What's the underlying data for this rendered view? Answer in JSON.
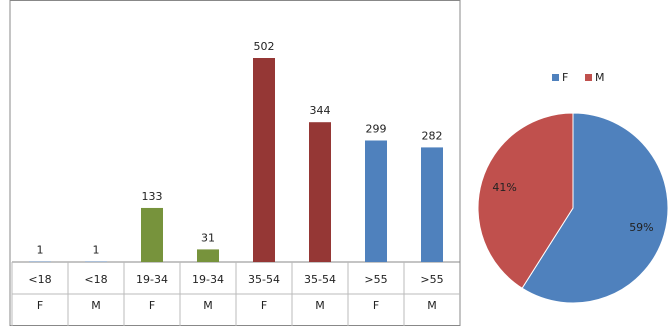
{
  "chart_data": [
    {
      "type": "bar",
      "categories": [
        "<18",
        "<18",
        "19-34",
        "19-34",
        "35-54",
        "35-54",
        ">55",
        ">55"
      ],
      "sub_categories": [
        "F",
        "M",
        "F",
        "M",
        "F",
        "M",
        "F",
        "M"
      ],
      "values": [
        1,
        1,
        133,
        31,
        502,
        344,
        299,
        282
      ],
      "colors": [
        "#4f81bd",
        "#4f81bd",
        "#77933c",
        "#77933c",
        "#953735",
        "#953735",
        "#4f81bd",
        "#4f81bd"
      ]
    },
    {
      "type": "pie",
      "categories": [
        "F",
        "M"
      ],
      "values": [
        59,
        41
      ],
      "value_labels": [
        "59%",
        "41%"
      ],
      "colors": [
        "#4f81bd",
        "#c0504d"
      ]
    }
  ]
}
